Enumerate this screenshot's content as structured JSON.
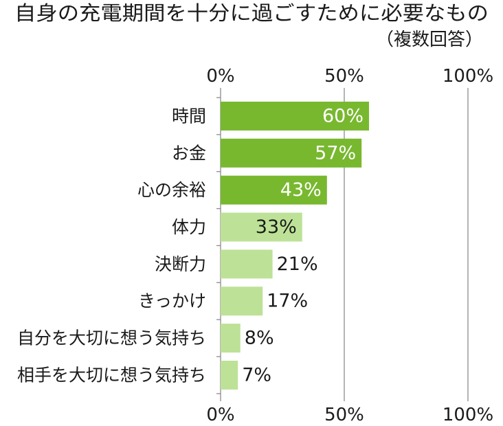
{
  "chart_data": {
    "type": "bar",
    "orientation": "horizontal",
    "title": "自身の充電期間を十分に過ごすために必要なもの",
    "subtitle": "（複数回答）",
    "categories": [
      "時間",
      "お金",
      "心の余裕",
      "体力",
      "決断力",
      "きっかけ",
      "自分を大切に想う気持ち",
      "相手を大切に想う気持ち"
    ],
    "values": [
      60,
      57,
      43,
      33,
      21,
      17,
      8,
      7
    ],
    "value_labels": [
      "60%",
      "57%",
      "43%",
      "33%",
      "21%",
      "17%",
      "8%",
      "7%"
    ],
    "xlim": [
      0,
      100
    ],
    "x_ticks": [
      0,
      50,
      100
    ],
    "x_tick_labels": [
      "0%",
      "50%",
      "100%"
    ],
    "x_tick_label_positions": [
      "top",
      "bottom"
    ],
    "grid": true,
    "legend": "none",
    "colors": {
      "highlight": "#78b82f",
      "base": "#bde297",
      "label_on_highlight": "#ffffff",
      "label_default": "#1a1a1a",
      "grid": "#8c8c8c"
    },
    "bar_colors": [
      "#78b82f",
      "#78b82f",
      "#78b82f",
      "#bde297",
      "#bde297",
      "#bde297",
      "#bde297",
      "#bde297"
    ]
  }
}
